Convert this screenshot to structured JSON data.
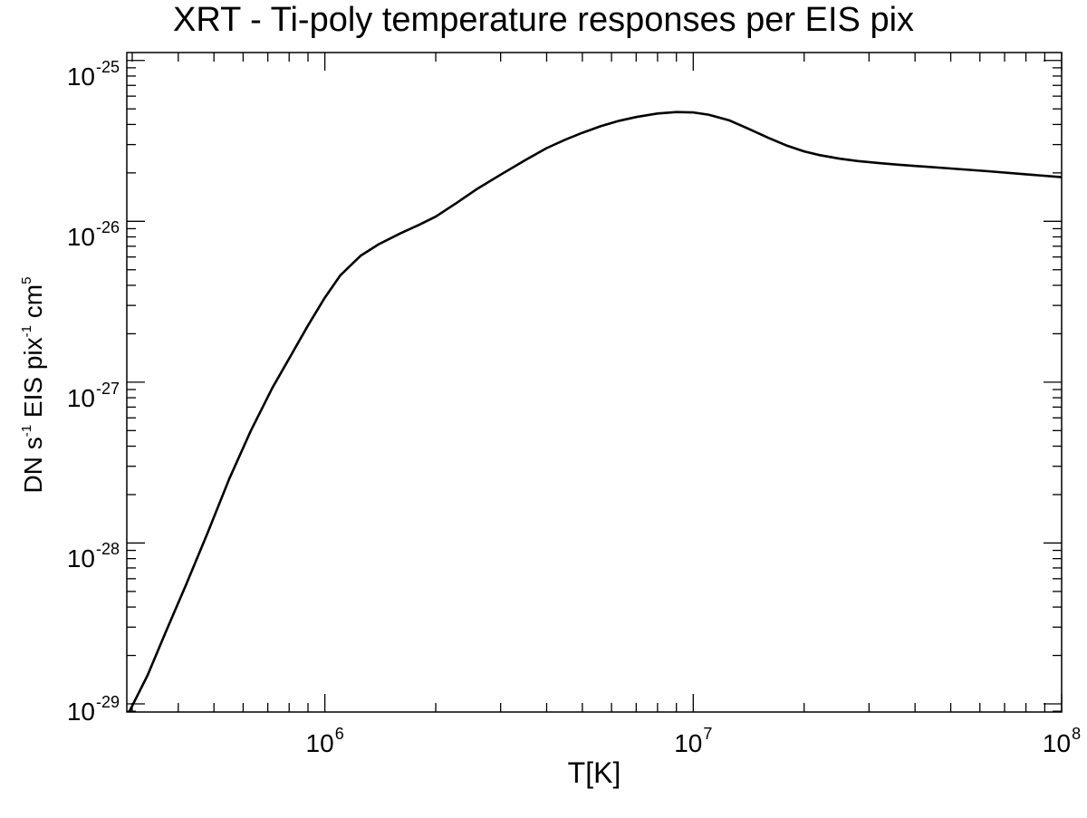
{
  "chart_data": {
    "type": "line",
    "title": "XRT - Ti-poly temperature responses per EIS pix",
    "xlabel": "T[K]",
    "ylabel": {
      "parts": [
        {
          "text": "DN s"
        },
        {
          "sup": "-1"
        },
        {
          "text": " EIS pix"
        },
        {
          "sup": "-1"
        },
        {
          "text": " cm"
        },
        {
          "sup": "5"
        }
      ]
    },
    "x_scale": "log",
    "y_scale": "log",
    "xlim": [
      290000,
      100000000
    ],
    "ylim": [
      8.9e-30,
      1.12e-25
    ],
    "x_ticks": [
      {
        "value": 1000000,
        "base": "10",
        "exp": "6"
      },
      {
        "value": 10000000,
        "base": "10",
        "exp": "7"
      },
      {
        "value": 100000000,
        "base": "10",
        "exp": "8"
      }
    ],
    "y_ticks": [
      {
        "value": 1e-25,
        "base": "10",
        "exp": "-25"
      },
      {
        "value": 1e-26,
        "base": "10",
        "exp": "-26"
      },
      {
        "value": 1e-27,
        "base": "10",
        "exp": "-27"
      },
      {
        "value": 1e-28,
        "base": "10",
        "exp": "-28"
      },
      {
        "value": 1e-29,
        "base": "10",
        "exp": "-29"
      }
    ],
    "grid": false,
    "series": [
      {
        "x": [
          295000,
          330000,
          370000,
          420000,
          480000,
          550000,
          630000,
          720000,
          820000,
          900000,
          1000000,
          1100000,
          1250000,
          1400000,
          1600000,
          1800000,
          2000000,
          2300000,
          2600000,
          3000000,
          3500000,
          4000000,
          4500000,
          5000000,
          5600000,
          6300000,
          7000000,
          8000000,
          9000000,
          10000000,
          11000000,
          12500000,
          14000000,
          16000000,
          18000000,
          20000000,
          22000000,
          25000000,
          28000000,
          32000000,
          36000000,
          40000000,
          50000000,
          63000000,
          80000000,
          100000000
        ],
        "y": [
          9e-30,
          1.5e-29,
          2.8e-29,
          5.5e-29,
          1.15e-28,
          2.5e-28,
          5e-28,
          9.2e-28,
          1.55e-27,
          2.25e-27,
          3.35e-27,
          4.6e-27,
          6.1e-27,
          7.2e-27,
          8.4e-27,
          9.5e-27,
          1.07e-26,
          1.32e-26,
          1.6e-26,
          1.95e-26,
          2.4e-26,
          2.85e-26,
          3.22e-26,
          3.55e-26,
          3.9e-26,
          4.22e-26,
          4.45e-26,
          4.68e-26,
          4.78e-26,
          4.75e-26,
          4.6e-26,
          4.25e-26,
          3.8e-26,
          3.3e-26,
          2.95e-26,
          2.72e-26,
          2.58e-26,
          2.45e-26,
          2.37e-26,
          2.3e-26,
          2.25e-26,
          2.21e-26,
          2.13e-26,
          2.05e-26,
          1.96e-26,
          1.88e-26
        ]
      }
    ]
  }
}
